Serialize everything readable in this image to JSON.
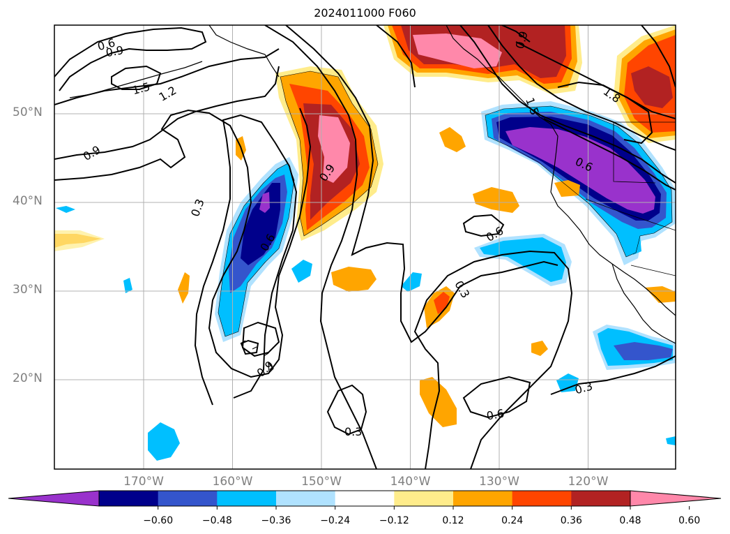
{
  "title": "2024011000 F060",
  "map": {
    "lon_range": [
      -180,
      -110
    ],
    "lat_range": [
      10,
      60
    ],
    "lat_ticks": [
      {
        "lat": 50,
        "label": "50°N"
      },
      {
        "lat": 40,
        "label": "40°N"
      },
      {
        "lat": 30,
        "label": "30°N"
      },
      {
        "lat": 20,
        "label": "20°N"
      }
    ],
    "lon_ticks": [
      {
        "lon": -170,
        "label": "170°W"
      },
      {
        "lon": -160,
        "label": "160°W"
      },
      {
        "lon": -150,
        "label": "150°W"
      },
      {
        "lon": -140,
        "label": "140°W"
      },
      {
        "lon": -130,
        "label": "130°W"
      },
      {
        "lon": -120,
        "label": "120°W"
      }
    ],
    "gridlines": true,
    "coastlines": true
  },
  "contour_labels": [
    "0.6",
    "0.9",
    "1.5",
    "1.2",
    "0.9",
    "0.3",
    "0.9",
    "0.6",
    "0.9",
    "0.9",
    "1.5",
    "1.8",
    "0.6",
    "0.6",
    "0.3",
    "0.6",
    "0.3",
    "0.3"
  ],
  "colorbar": {
    "extend": "both",
    "colors": [
      "#9932cc",
      "#00008b",
      "#3455cc",
      "#00bfff",
      "#b0e2ff",
      "#ffffff",
      "#ffec8b",
      "#ffa500",
      "#ff4500",
      "#b22222",
      "#ff88aa"
    ],
    "labels": [
      "−0.60",
      "−0.48",
      "−0.36",
      "−0.24",
      "−0.12",
      "0.12",
      "0.24",
      "0.36",
      "0.48",
      "0.60"
    ]
  }
}
